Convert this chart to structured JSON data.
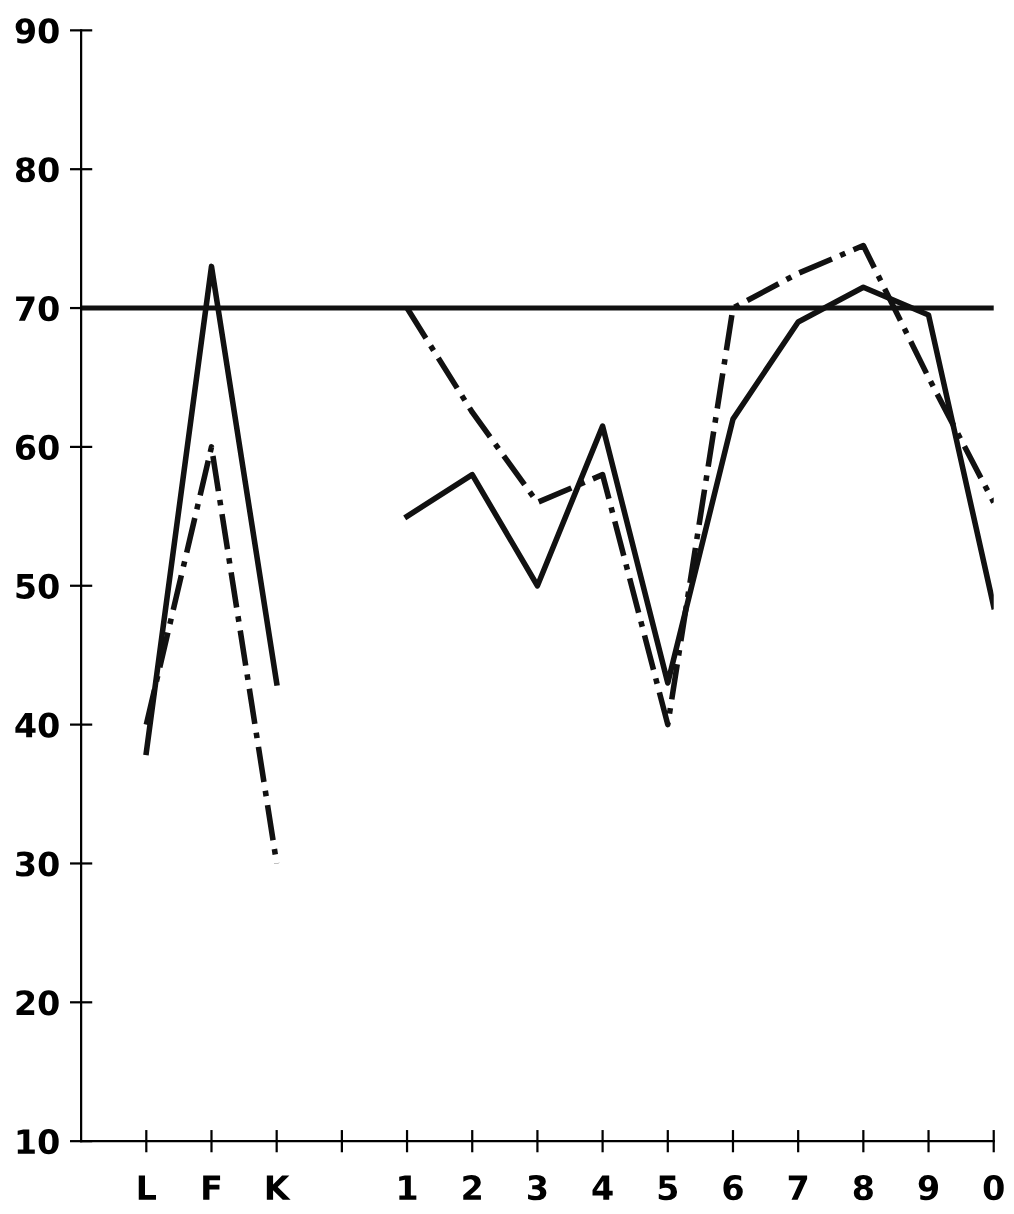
{
  "chart_data": {
    "type": "line",
    "categories": [
      "L",
      "F",
      "K",
      null,
      "1",
      "2",
      "3",
      "4",
      "5",
      "6",
      "7",
      "8",
      "9",
      "0"
    ],
    "series": [
      {
        "color": "#111111",
        "line_style": "solid",
        "values": [
          38,
          73,
          43,
          null,
          55,
          58,
          50,
          61.5,
          43,
          62,
          69,
          71.5,
          69.5,
          48.5
        ]
      },
      {
        "color": "#111111",
        "line_style": "dashdot",
        "values": [
          40,
          60,
          30,
          null,
          70,
          62.5,
          56,
          58,
          40,
          70,
          72.5,
          74.5,
          65,
          56
        ]
      }
    ],
    "ylim": [
      10,
      90
    ],
    "yticks": [
      10,
      20,
      30,
      40,
      50,
      60,
      70,
      80,
      90
    ],
    "ref_lines": [
      {
        "axis": "y",
        "value": 70,
        "color": "#111111",
        "line_style": "solid"
      }
    ],
    "grid": false,
    "legend": false,
    "marker": "none"
  }
}
